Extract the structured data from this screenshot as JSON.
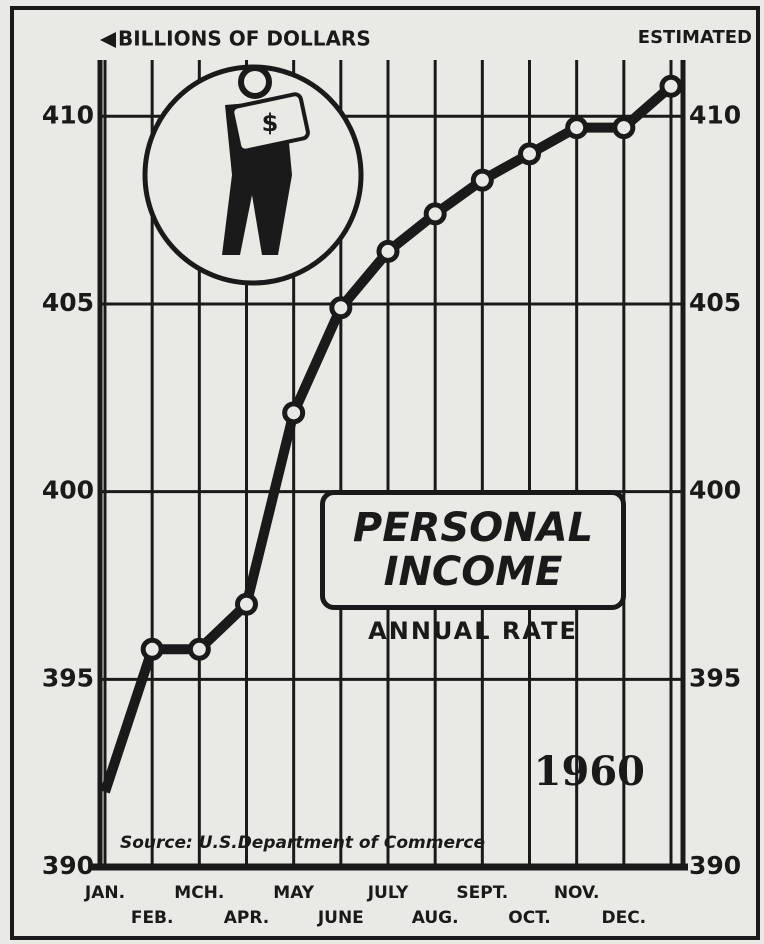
{
  "chart_data": {
    "type": "line",
    "title": "PERSONAL INCOME",
    "subtitle": "ANNUAL RATE",
    "y_axis_label": "BILLIONS OF DOLLARS",
    "annotations": {
      "estimated": "ESTIMATED",
      "year": "1960",
      "source": "Source: U.S.Department of Commerce"
    },
    "categories": [
      "JAN.",
      "FEB.",
      "MCH.",
      "APR.",
      "MAY",
      "JUNE",
      "JULY",
      "AUG.",
      "SEPT.",
      "OCT.",
      "NOV.",
      "DEC.",
      null
    ],
    "series": [
      {
        "name": "Personal income",
        "color": "#1a1a1a",
        "values": [
          392.0,
          395.8,
          395.8,
          397.0,
          402.1,
          404.9,
          406.4,
          407.4,
          408.3,
          409.0,
          409.7,
          409.7,
          410.8
        ]
      }
    ],
    "ylim": [
      390,
      411.5
    ],
    "yticks": [
      390,
      395,
      400,
      405,
      410
    ],
    "grid": true
  }
}
